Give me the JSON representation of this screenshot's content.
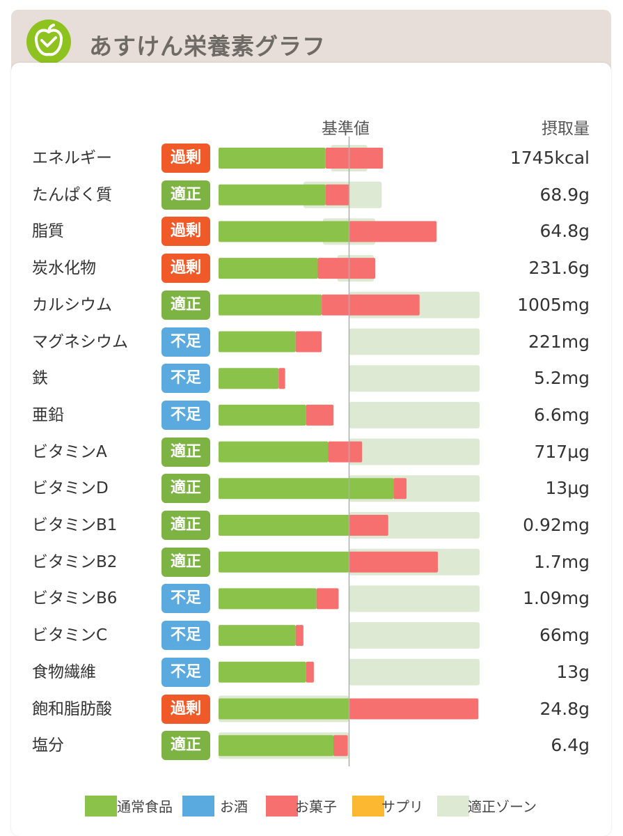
{
  "app": {
    "title": "あすけん栄養素グラフ",
    "logo_icon": "apple-icon",
    "logo_color": "#8dc21f"
  },
  "columns": {
    "baseline": "基準値",
    "intake": "摂取量"
  },
  "status_colors": {
    "過剰": "#f05a28",
    "適正": "#7cb342",
    "不足": "#5aaae0"
  },
  "colors": {
    "normal_food": "#8bc34a",
    "alcohol": "#5aaae0",
    "snack": "#f77070",
    "supplement": "#fbb830",
    "proper_zone": "#dde9d2",
    "baseline_line": "#a9b1b0"
  },
  "legend": [
    {
      "label": "通常食品",
      "color": "#8bc34a"
    },
    {
      "label": "お酒",
      "color": "#5aaae0"
    },
    {
      "label": "お菓子",
      "color": "#f77070"
    },
    {
      "label": "サプリ",
      "color": "#fbb830"
    },
    {
      "label": "適正ゾーン",
      "color": "#dde9d2"
    }
  ],
  "chart_data": {
    "type": "bar",
    "orientation": "horizontal",
    "stacked": true,
    "x_unit": "percent of baseline",
    "xlim": [
      0,
      200
    ],
    "baseline_at": 100,
    "categories": [
      "エネルギー",
      "たんぱく質",
      "脂質",
      "炭水化物",
      "カルシウム",
      "マグネシウム",
      "鉄",
      "亜鉛",
      "ビタミンA",
      "ビタミンD",
      "ビタミンB1",
      "ビタミンB2",
      "ビタミンB6",
      "ビタミンC",
      "食物繊維",
      "飽和脂肪酸",
      "塩分"
    ],
    "status": [
      "過剰",
      "適正",
      "過剰",
      "過剰",
      "適正",
      "不足",
      "不足",
      "不足",
      "適正",
      "適正",
      "適正",
      "適正",
      "不足",
      "不足",
      "不足",
      "過剰",
      "適正"
    ],
    "intake": [
      "1745kcal",
      "68.9g",
      "64.8g",
      "231.6g",
      "1005mg",
      "221mg",
      "5.2mg",
      "6.6mg",
      "717µg",
      "13µg",
      "0.92mg",
      "1.7mg",
      "1.09mg",
      "66mg",
      "13g",
      "24.8g",
      "6.4g"
    ],
    "series": [
      {
        "name": "通常食品",
        "values": [
          82,
          82,
          100,
          76,
          79,
          59,
          46,
          67,
          84,
          134,
          100,
          100,
          75,
          59,
          67,
          100,
          88
        ]
      },
      {
        "name": "お菓子",
        "values": [
          44,
          18,
          67,
          44,
          75,
          20,
          5,
          21,
          26,
          10,
          30,
          68,
          17,
          6,
          6,
          99,
          11
        ]
      }
    ],
    "proper_zone": [
      [
        86,
        114
      ],
      [
        65,
        125
      ],
      [
        80,
        120
      ],
      [
        91,
        119
      ],
      [
        100,
        200
      ],
      [
        100,
        200
      ],
      [
        100,
        200
      ],
      [
        100,
        200
      ],
      [
        100,
        200
      ],
      [
        100,
        200
      ],
      [
        100,
        200
      ],
      [
        100,
        200
      ],
      [
        100,
        200
      ],
      [
        100,
        200
      ],
      [
        100,
        200
      ],
      [
        0,
        100
      ],
      [
        0,
        100
      ]
    ]
  }
}
